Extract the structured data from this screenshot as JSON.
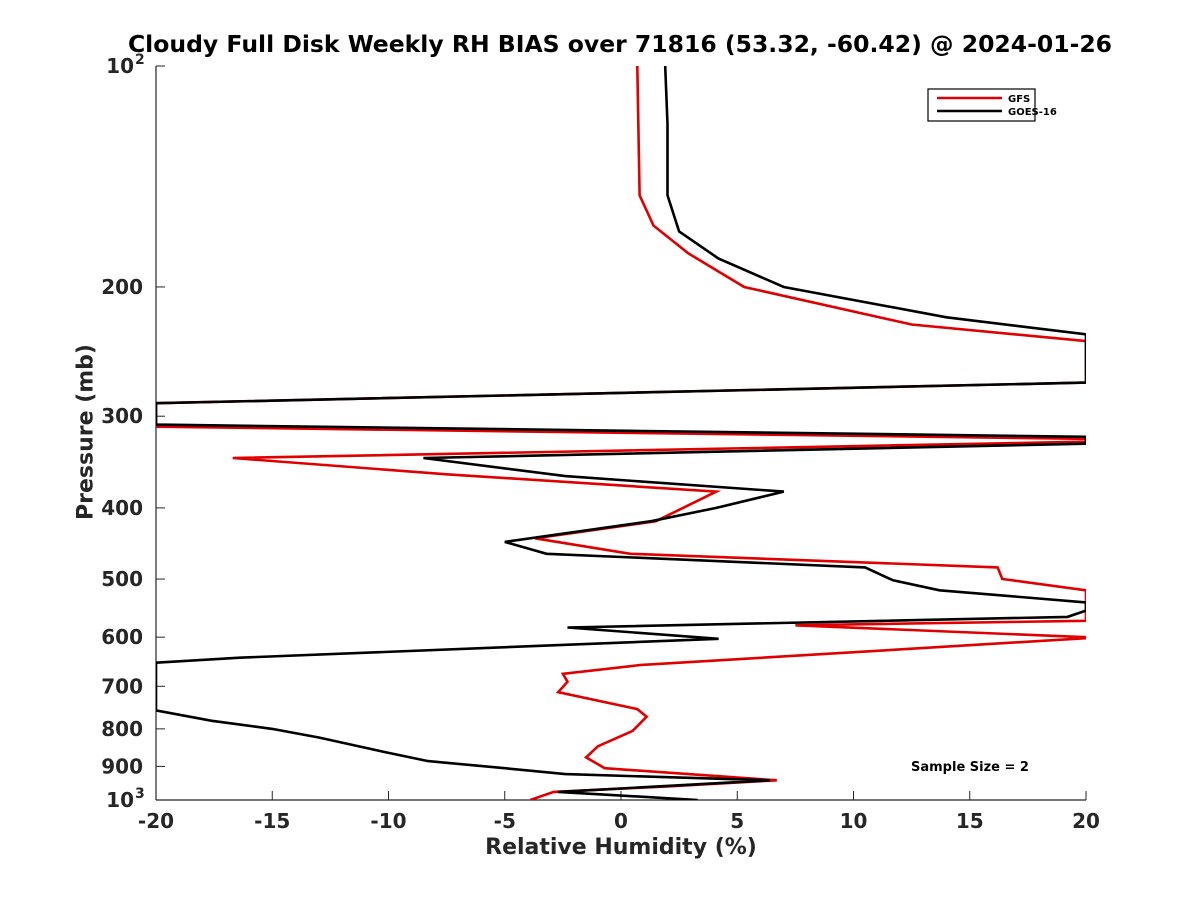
{
  "chart_data": {
    "type": "line",
    "title": "Cloudy Full Disk Weekly RH BIAS over 71816 (53.32, -60.42) @ 2024-01-26",
    "xlabel": "Relative Humidity (%)",
    "ylabel": "Pressure (mb)",
    "xlim": [
      -20,
      20
    ],
    "ylim": [
      1000,
      100
    ],
    "yscale": "log",
    "xticks": [
      "-20",
      "-15",
      "-10",
      "-5",
      "0",
      "5",
      "10",
      "15",
      "20"
    ],
    "yticks": [
      {
        "value": 100,
        "label": "10",
        "sup": "2"
      },
      {
        "value": 200,
        "label": "200",
        "sup": ""
      },
      {
        "value": 300,
        "label": "300",
        "sup": ""
      },
      {
        "value": 400,
        "label": "400",
        "sup": ""
      },
      {
        "value": 500,
        "label": "500",
        "sup": ""
      },
      {
        "value": 600,
        "label": "600",
        "sup": ""
      },
      {
        "value": 700,
        "label": "700",
        "sup": ""
      },
      {
        "value": 800,
        "label": "800",
        "sup": ""
      },
      {
        "value": 900,
        "label": "900",
        "sup": ""
      },
      {
        "value": 1000,
        "label": "10",
        "sup": "3"
      }
    ],
    "grid": false,
    "legend_position": "top-right",
    "annotation": "Sample Size = 2",
    "colors": {
      "GFS": "#e00000",
      "GOES-16": "#000000",
      "axes": "#262626"
    },
    "series": [
      {
        "name": "GFS",
        "color": "#e00000",
        "points": [
          [
            0.7,
            100
          ],
          [
            0.8,
            150
          ],
          [
            1.4,
            165
          ],
          [
            2.9,
            180
          ],
          [
            5.3,
            200
          ],
          [
            12.5,
            225
          ],
          [
            20,
            237
          ],
          [
            20,
            270
          ],
          [
            -20,
            288
          ],
          [
            -20,
            310
          ],
          [
            20,
            322
          ],
          [
            20,
            325
          ],
          [
            -16.7,
            342
          ],
          [
            -7.5,
            360
          ],
          [
            4.1,
            380
          ],
          [
            1.5,
            417
          ],
          [
            -3.7,
            440
          ],
          [
            0.4,
            462
          ],
          [
            16.2,
            482
          ],
          [
            16.4,
            500
          ],
          [
            20,
            518
          ],
          [
            20,
            570
          ],
          [
            7.5,
            578
          ],
          [
            20,
            600
          ],
          [
            20,
            602
          ],
          [
            0.8,
            655
          ],
          [
            -2.5,
            673
          ],
          [
            -2.3,
            690
          ],
          [
            -2.7,
            713
          ],
          [
            0.7,
            752
          ],
          [
            1.1,
            770
          ],
          [
            0.5,
            805
          ],
          [
            -1.0,
            845
          ],
          [
            -1.5,
            875
          ],
          [
            -0.7,
            905
          ],
          [
            6.7,
            940
          ],
          [
            2.1,
            958
          ],
          [
            -2.9,
            975
          ],
          [
            -3.9,
            1000
          ]
        ]
      },
      {
        "name": "GOES-16",
        "color": "#000000",
        "points": [
          [
            1.9,
            100
          ],
          [
            2.0,
            120
          ],
          [
            2.0,
            150
          ],
          [
            2.5,
            168
          ],
          [
            4.2,
            183
          ],
          [
            7.0,
            200
          ],
          [
            14.0,
            220
          ],
          [
            20,
            232
          ],
          [
            20,
            270
          ],
          [
            -20,
            288
          ],
          [
            -20,
            308
          ],
          [
            20,
            320
          ],
          [
            20,
            327
          ],
          [
            -8.5,
            342
          ],
          [
            -2.4,
            362
          ],
          [
            7.0,
            380
          ],
          [
            4.1,
            400
          ],
          [
            1.3,
            417
          ],
          [
            -5.0,
            445
          ],
          [
            -3.2,
            462
          ],
          [
            10.5,
            482
          ],
          [
            11.7,
            502
          ],
          [
            13.7,
            518
          ],
          [
            20,
            538
          ],
          [
            20,
            552
          ],
          [
            19.2,
            563
          ],
          [
            -2.3,
            582
          ],
          [
            4.2,
            603
          ],
          [
            -16.4,
            640
          ],
          [
            -20,
            650
          ],
          [
            -20,
            755
          ],
          [
            -17.6,
            780
          ],
          [
            -15.0,
            800
          ],
          [
            -13.0,
            822
          ],
          [
            -10.2,
            860
          ],
          [
            -8.3,
            885
          ],
          [
            -5.0,
            905
          ],
          [
            -2.4,
            922
          ],
          [
            6.4,
            940
          ],
          [
            -2.7,
            975
          ],
          [
            3.3,
            1000
          ]
        ]
      }
    ]
  }
}
